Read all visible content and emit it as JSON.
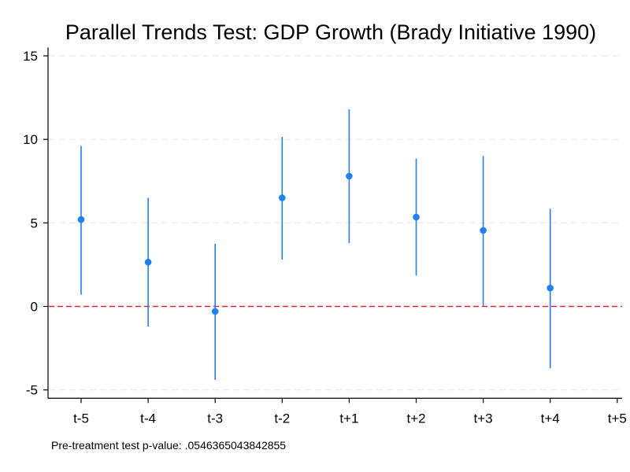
{
  "chart_data": {
    "type": "scatter",
    "title": "Parallel Trends Test: GDP Growth (Brady Initiative 1990)",
    "xlabel": "",
    "ylabel": "",
    "categories": [
      "t-5",
      "t-4",
      "t-3",
      "t-2",
      "t+1",
      "t+2",
      "t+3",
      "t+4",
      "t+5"
    ],
    "ylim": [
      -5.5,
      15.5
    ],
    "yticks": [
      -5,
      0,
      5,
      10,
      15
    ],
    "grid": true,
    "legend": "none",
    "reference_line": {
      "y": 0,
      "style": "dashed",
      "color": "#e8202a"
    },
    "series": [
      {
        "points": [
          {
            "x": "t-5",
            "estimate": 5.2,
            "ci_low": 0.7,
            "ci_high": 9.6
          },
          {
            "x": "t-4",
            "estimate": 2.65,
            "ci_low": -1.2,
            "ci_high": 6.5
          },
          {
            "x": "t-3",
            "estimate": -0.3,
            "ci_low": -4.4,
            "ci_high": 3.75
          },
          {
            "x": "t-2",
            "estimate": 6.5,
            "ci_low": 2.8,
            "ci_high": 10.15
          },
          {
            "x": "t+1",
            "estimate": 7.8,
            "ci_low": 3.8,
            "ci_high": 11.8
          },
          {
            "x": "t+2",
            "estimate": 5.35,
            "ci_low": 1.85,
            "ci_high": 8.85
          },
          {
            "x": "t+3",
            "estimate": 4.55,
            "ci_low": 0.05,
            "ci_high": 9.0
          },
          {
            "x": "t+4",
            "estimate": 1.1,
            "ci_low": -3.7,
            "ci_high": 5.85
          }
        ]
      }
    ],
    "colors": {
      "marker": "#1e7fff",
      "ci": "#1e7fff",
      "zero_line": "#e8202a",
      "grid": "#eaeaea",
      "axis": "#000000"
    },
    "note": "Pre-treatment test p-value:  .0546365043842855"
  }
}
